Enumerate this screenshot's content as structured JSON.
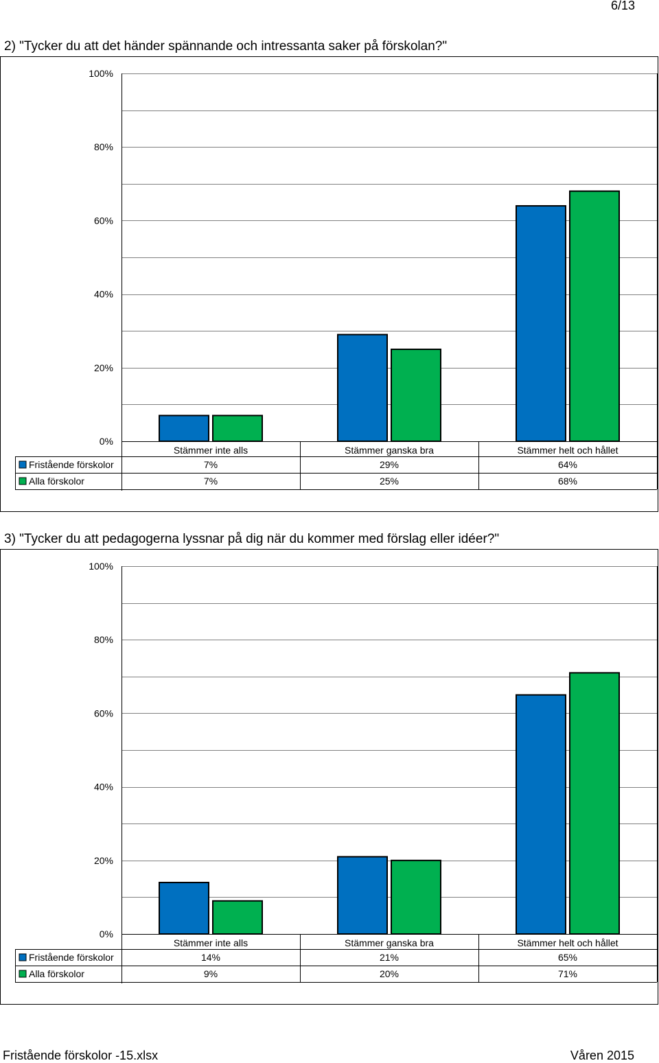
{
  "page": {
    "number": "6/13"
  },
  "colors": {
    "fristaende": "#0070C0",
    "alla": "#00B050",
    "grid": "#808080"
  },
  "chart_data": [
    {
      "type": "bar",
      "title": "2) \"Tycker du att det händer spännande och intressanta saker på förskolan?\"",
      "categories": [
        "Stämmer inte alls",
        "Stämmer ganska bra",
        "Stämmer helt och hållet"
      ],
      "series": [
        {
          "name": "Fristående förskolor",
          "values": [
            7,
            29,
            64
          ],
          "labels": [
            "7%",
            "29%",
            "64%"
          ]
        },
        {
          "name": "Alla förskolor",
          "values": [
            7,
            25,
            68
          ],
          "labels": [
            "7%",
            "25%",
            "68%"
          ]
        }
      ],
      "yticks": [
        "0%",
        "20%",
        "40%",
        "60%",
        "80%",
        "100%"
      ],
      "ylim": [
        0,
        100
      ],
      "grid": true,
      "legend": "data table below chart"
    },
    {
      "type": "bar",
      "title": "3) \"Tycker du att pedagogerna lyssnar på dig när du kommer med förslag eller idéer?\"",
      "categories": [
        "Stämmer inte alls",
        "Stämmer ganska bra",
        "Stämmer helt och hållet"
      ],
      "series": [
        {
          "name": "Fristående förskolor",
          "values": [
            14,
            21,
            65
          ],
          "labels": [
            "14%",
            "21%",
            "65%"
          ]
        },
        {
          "name": "Alla förskolor",
          "values": [
            9,
            20,
            71
          ],
          "labels": [
            "9%",
            "20%",
            "71%"
          ]
        }
      ],
      "yticks": [
        "0%",
        "20%",
        "40%",
        "60%",
        "80%",
        "100%"
      ],
      "ylim": [
        0,
        100
      ],
      "grid": true,
      "legend": "data table below chart"
    }
  ],
  "footer": {
    "left": "Fristående förskolor -15.xlsx",
    "right": "Våren 2015"
  }
}
